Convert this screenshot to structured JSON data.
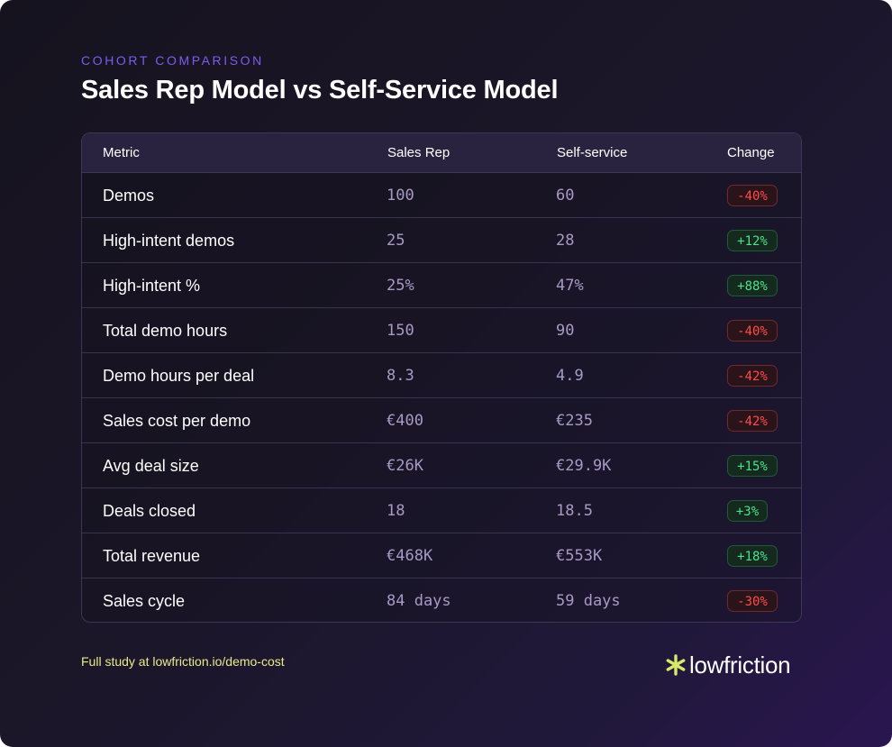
{
  "header": {
    "eyebrow": "COHORT COMPARISON",
    "title": "Sales Rep Model vs Self-Service Model"
  },
  "table": {
    "columns": [
      "Metric",
      "Sales Rep",
      "Self-service",
      "Change"
    ],
    "rows": [
      {
        "metric": "Demos",
        "sales_rep": "100",
        "self_service": "60",
        "change": "-40%",
        "direction": "neg"
      },
      {
        "metric": "High-intent demos",
        "sales_rep": "25",
        "self_service": "28",
        "change": "+12%",
        "direction": "pos"
      },
      {
        "metric": "High-intent %",
        "sales_rep": "25%",
        "self_service": "47%",
        "change": "+88%",
        "direction": "pos"
      },
      {
        "metric": "Total demo hours",
        "sales_rep": "150",
        "self_service": "90",
        "change": "-40%",
        "direction": "neg"
      },
      {
        "metric": "Demo hours per deal",
        "sales_rep": "8.3",
        "self_service": "4.9",
        "change": "-42%",
        "direction": "neg"
      },
      {
        "metric": "Sales cost per demo",
        "sales_rep": "€400",
        "self_service": "€235",
        "change": "-42%",
        "direction": "neg"
      },
      {
        "metric": "Avg deal size",
        "sales_rep": "€26K",
        "self_service": "€29.9K",
        "change": "+15%",
        "direction": "pos"
      },
      {
        "metric": "Deals closed",
        "sales_rep": "18",
        "self_service": "18.5",
        "change": "+3%",
        "direction": "pos"
      },
      {
        "metric": "Total revenue",
        "sales_rep": "€468K",
        "self_service": "€553K",
        "change": "+18%",
        "direction": "pos"
      },
      {
        "metric": "Sales cycle",
        "sales_rep": "84 days",
        "self_service": "59 days",
        "change": "-30%",
        "direction": "neg"
      }
    ]
  },
  "footer": {
    "link_text": "Full study at lowfriction.io/demo-cost",
    "logo_text": "lowfriction",
    "logo_icon": "asterisk-icon"
  },
  "colors": {
    "accent": "#7c5cf0",
    "negative": "#ff4b4b",
    "positive": "#4fe08a",
    "logo_mark": "#d6e86a",
    "footer_link": "#e6ec8a"
  }
}
